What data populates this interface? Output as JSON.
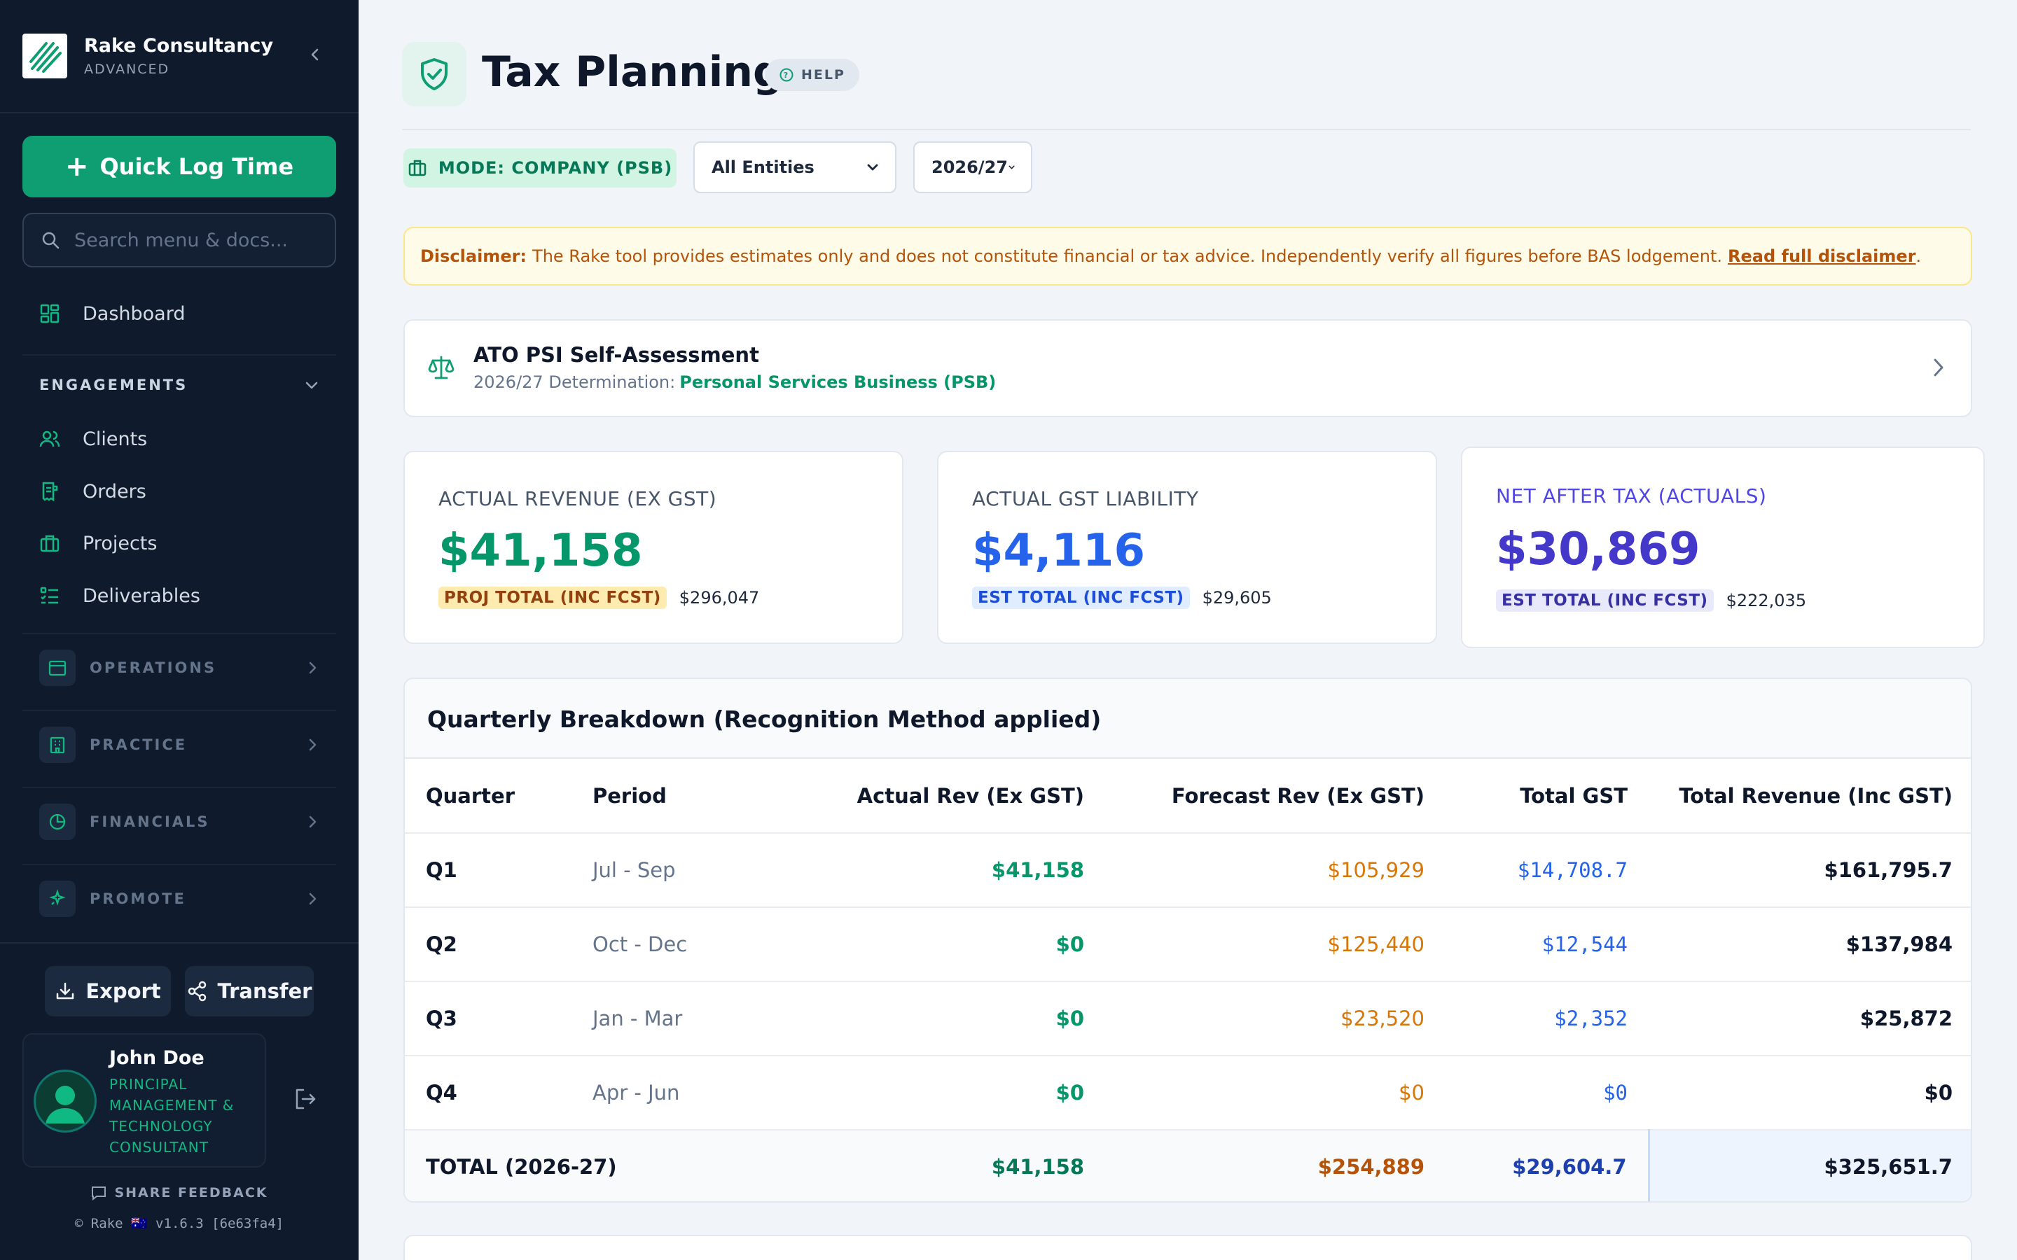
{
  "sidebar": {
    "brand_name": "Rake Consultancy",
    "brand_tier": "ADVANCED",
    "quick_log_label": "Quick Log Time",
    "search_placeholder": "Search menu & docs...",
    "dashboard_label": "Dashboard",
    "engagements_label": "ENGAGEMENTS",
    "engagement_items": [
      "Clients",
      "Orders",
      "Projects",
      "Deliverables"
    ],
    "groups": [
      "OPERATIONS",
      "PRACTICE",
      "FINANCIALS",
      "PROMOTE"
    ],
    "export_label": "Export",
    "transfer_label": "Transfer",
    "user": {
      "name": "John Doe",
      "role": "PRINCIPAL MANAGEMENT & TECHNOLOGY CONSULTANT"
    },
    "feedback_label": "SHARE FEEDBACK",
    "version": "© Rake 🇦🇺 v1.6.3 [6e63fa4]"
  },
  "header": {
    "title": "Tax Planning",
    "help_label": "HELP",
    "mode_label": "MODE: COMPANY (PSB)",
    "entity_select": "All Entities",
    "year_select": "2026/27"
  },
  "disclaimer": {
    "label": "Disclaimer:",
    "text": "The Rake tool provides estimates only and does not constitute financial or tax advice. Independently verify all figures before BAS lodgement.",
    "link": "Read full disclaimer",
    "suffix": "."
  },
  "psi": {
    "title": "ATO PSI Self-Assessment",
    "determination_prefix": "2026/27 Determination:",
    "determination": "Personal Services Business (PSB)"
  },
  "stats": [
    {
      "label": "ACTUAL REVENUE (EX GST)",
      "value": "$41,158",
      "pill": "PROJ TOTAL (INC FCST)",
      "pill_value": "$296,047"
    },
    {
      "label": "ACTUAL GST LIABILITY",
      "value": "$4,116",
      "pill": "EST TOTAL (INC FCST)",
      "pill_value": "$29,605"
    },
    {
      "label": "NET AFTER TAX (ACTUALS)",
      "value": "$30,869",
      "pill": "EST TOTAL (INC FCST)",
      "pill_value": "$222,035"
    }
  ],
  "colors": {
    "accent_green": "#0f9d72",
    "revenue_green": "#059669",
    "gst_blue": "#2563eb",
    "net_indigo": "#4f46e5",
    "forecast_amber": "#d97706",
    "sidebar_bg": "#0f1a2c"
  },
  "quarterly": {
    "title": "Quarterly Breakdown (Recognition Method applied)",
    "columns": [
      "Quarter",
      "Period",
      "Actual Rev (Ex GST)",
      "Forecast Rev (Ex GST)",
      "Total GST",
      "Total Revenue (Inc GST)"
    ],
    "rows": [
      {
        "quarter": "Q1",
        "period": "Jul - Sep",
        "actual": "$41,158",
        "forecast": "$105,929",
        "gst": "$14,708.7",
        "total": "$161,795.7"
      },
      {
        "quarter": "Q2",
        "period": "Oct - Dec",
        "actual": "$0",
        "forecast": "$125,440",
        "gst": "$12,544",
        "total": "$137,984"
      },
      {
        "quarter": "Q3",
        "period": "Jan - Mar",
        "actual": "$0",
        "forecast": "$23,520",
        "gst": "$2,352",
        "total": "$25,872"
      },
      {
        "quarter": "Q4",
        "period": "Apr - Jun",
        "actual": "$0",
        "forecast": "$0",
        "gst": "$0",
        "total": "$0"
      }
    ],
    "total": {
      "label": "TOTAL (2026-27)",
      "actual": "$41,158",
      "forecast": "$254,889",
      "gst": "$29,604.7",
      "total": "$325,651.7"
    }
  }
}
